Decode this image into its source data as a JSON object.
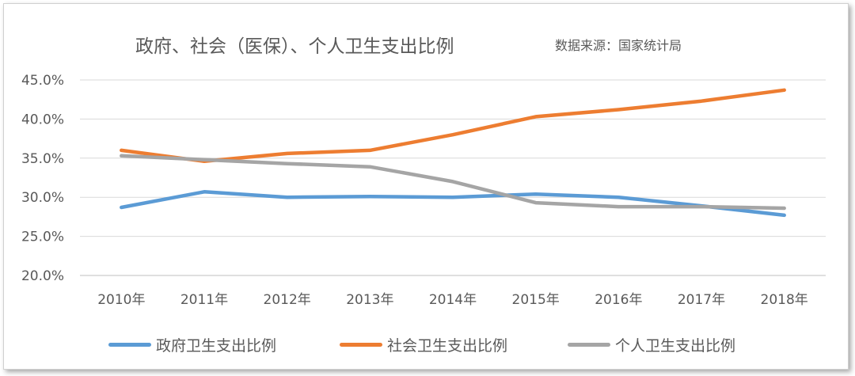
{
  "chart_data": {
    "type": "line",
    "title": "政府、社会（医保）、个人卫生支出比例",
    "source_note": "数据来源：国家统计局",
    "categories": [
      "2010年",
      "2011年",
      "2012年",
      "2013年",
      "2014年",
      "2015年",
      "2016年",
      "2017年",
      "2018年"
    ],
    "series": [
      {
        "name": "政府卫生支出比例",
        "color": "#5B9BD5",
        "values": [
          28.7,
          30.7,
          30.0,
          30.1,
          30.0,
          30.4,
          30.0,
          28.9,
          27.7
        ]
      },
      {
        "name": "社会卫生支出比例",
        "color": "#ED7D31",
        "values": [
          36.0,
          34.6,
          35.6,
          36.0,
          38.0,
          40.3,
          41.2,
          42.3,
          43.7
        ]
      },
      {
        "name": "个人卫生支出比例",
        "color": "#A5A5A5",
        "values": [
          35.3,
          34.8,
          34.3,
          33.9,
          32.0,
          29.3,
          28.8,
          28.8,
          28.6
        ]
      }
    ],
    "y_ticks": [
      "20.0%",
      "25.0%",
      "30.0%",
      "35.0%",
      "40.0%",
      "45.0%"
    ],
    "ylim": [
      20,
      45
    ],
    "grid": true,
    "legend_position": "bottom",
    "xlabel": "",
    "ylabel": ""
  }
}
